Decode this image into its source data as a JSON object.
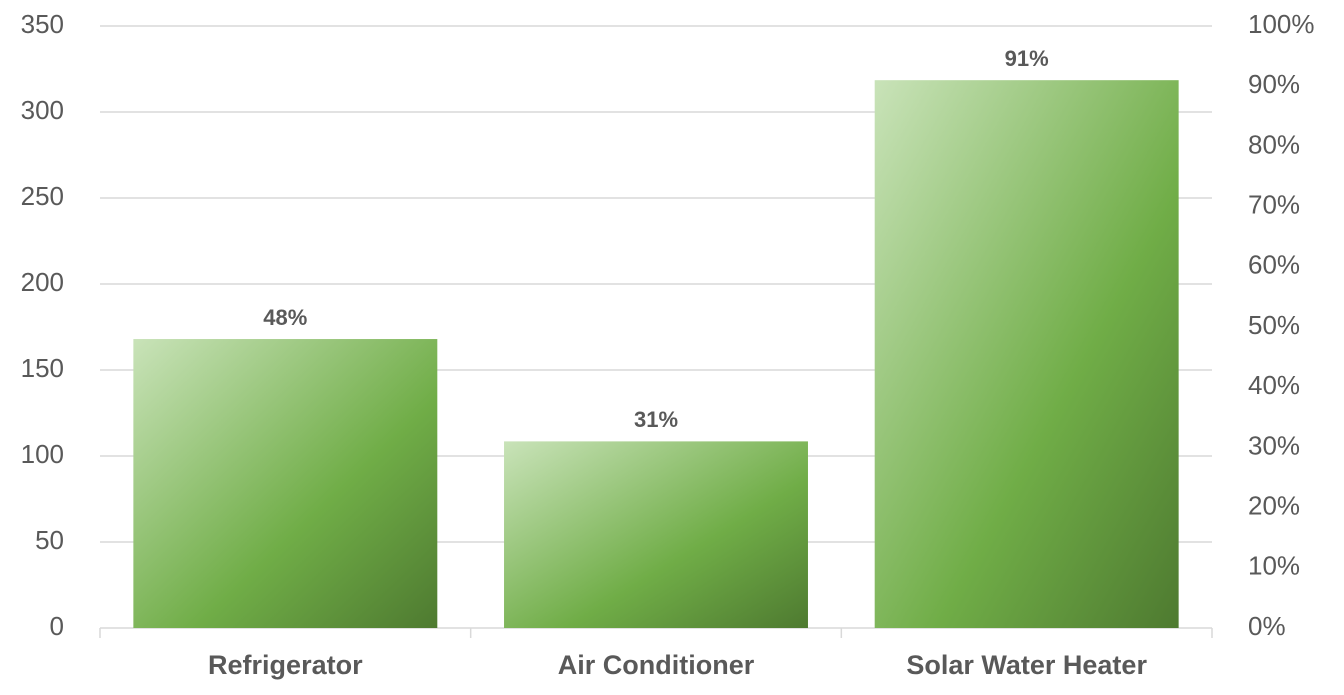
{
  "chart_data": {
    "type": "bar",
    "categories": [
      "Refrigerator",
      "Air Conditioner",
      "Solar Water Heater"
    ],
    "series": [
      {
        "color": "#70ad47",
        "axis": "y2",
        "values": [
          48,
          31,
          91
        ],
        "value_labels": [
          "48%",
          "31%",
          "91%"
        ]
      }
    ],
    "ylim": [
      0,
      350
    ],
    "yticks": [
      0,
      50,
      100,
      150,
      200,
      250,
      300,
      350
    ],
    "y2lim": [
      0,
      100
    ],
    "y2ticks": [
      {
        "value": 0,
        "label": "0%"
      },
      {
        "value": 10,
        "label": "10%"
      },
      {
        "value": 20,
        "label": "20%"
      },
      {
        "value": 30,
        "label": "30%"
      },
      {
        "value": 40,
        "label": "40%"
      },
      {
        "value": 50,
        "label": "50%"
      },
      {
        "value": 60,
        "label": "60%"
      },
      {
        "value": 70,
        "label": "70%"
      },
      {
        "value": 80,
        "label": "80%"
      },
      {
        "value": 90,
        "label": "90%"
      },
      {
        "value": 100,
        "label": "100%"
      }
    ],
    "grid": true
  }
}
